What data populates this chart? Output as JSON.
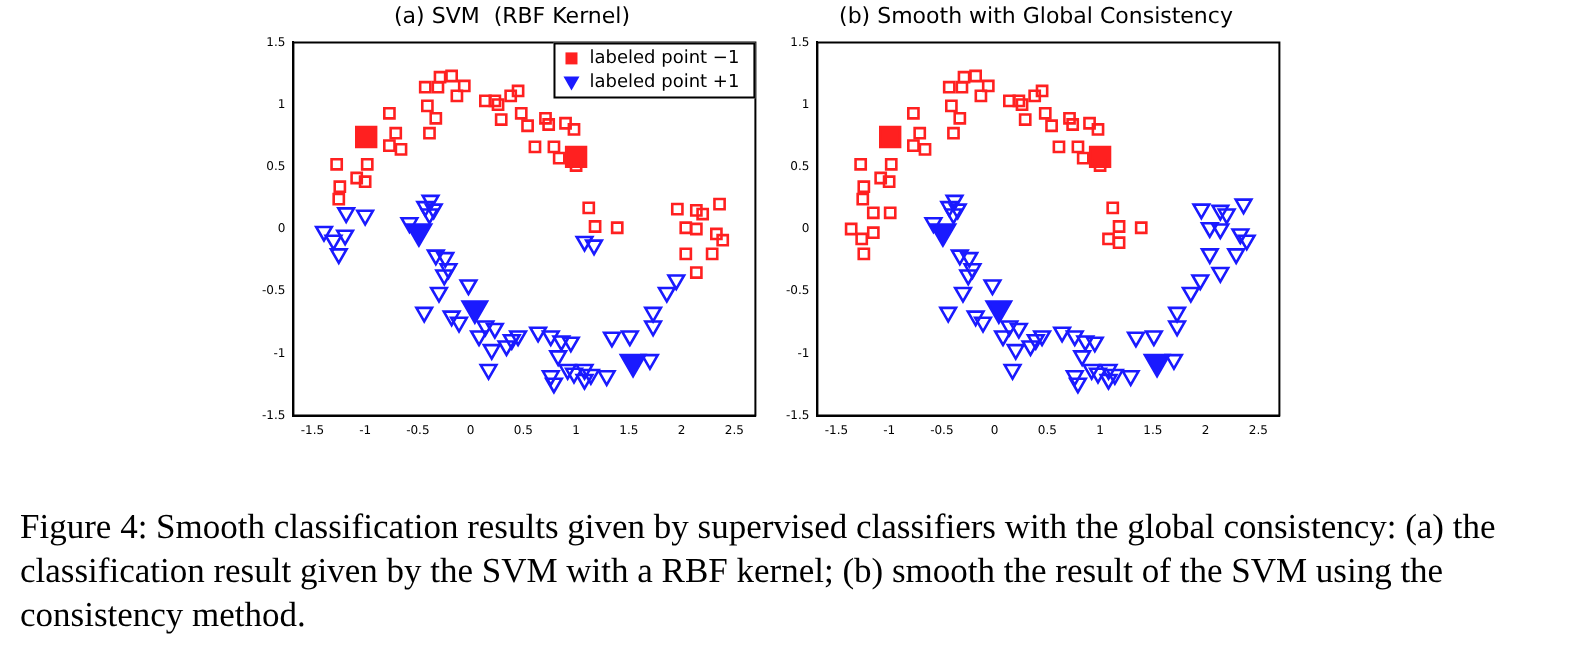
{
  "chart_data": [
    {
      "type": "scatter",
      "title": "(a) SVM  (RBF Kernel)",
      "xlim": [
        -1.68,
        2.7
      ],
      "ylim": [
        -1.5,
        1.5
      ],
      "xticks": [
        -1.5,
        -1,
        -0.5,
        0,
        0.5,
        1,
        1.5,
        2,
        2.5
      ],
      "yticks": [
        -1.5,
        -1,
        -0.5,
        0,
        0.5,
        1,
        1.5
      ],
      "grid": false,
      "legend": "top right",
      "annotations": [
        "Figure 4: Smooth classification results given by supervised classifiers with the global consistency: (a) the classification result given by the SVM with a RBF kernel; (b) smooth the result of the SVM using the consistency method."
      ],
      "series": [
        {
          "color": "#ff2020",
          "marker": "square",
          "x": [
            -1.27,
            -1.24,
            -1.25,
            -1.08,
            -1.0,
            -0.98,
            -0.77,
            -0.71,
            -0.77,
            -0.66,
            -0.43,
            -0.41,
            -0.33,
            -0.29,
            -0.18,
            -0.31,
            -0.13,
            -0.06,
            -0.39,
            0.14,
            0.23,
            0.26,
            0.29,
            0.38,
            0.45,
            0.48,
            0.54,
            0.61,
            0.71,
            0.74,
            0.79,
            0.9,
            0.98,
            0.84,
            1.0,
            1.12,
            1.18,
            1.39,
            1.96,
            2.14,
            2.2,
            2.36,
            2.04,
            2.14,
            2.33,
            2.39,
            2.04,
            2.29,
            2.14
          ],
          "values": [
            0.52,
            0.34,
            0.24,
            0.41,
            0.38,
            0.52,
            0.93,
            0.77,
            0.67,
            0.64,
            1.14,
            0.99,
            0.89,
            1.22,
            1.23,
            1.14,
            1.07,
            1.15,
            0.77,
            1.03,
            1.03,
            1.0,
            0.88,
            1.07,
            1.11,
            0.93,
            0.83,
            0.66,
            0.89,
            0.84,
            0.66,
            0.85,
            0.8,
            0.57,
            0.51,
            0.17,
            0.02,
            0.01,
            0.16,
            0.15,
            0.12,
            0.2,
            0.01,
            0.0,
            -0.04,
            -0.09,
            -0.2,
            -0.2,
            -0.35
          ]
        },
        {
          "color": "#1a1aff",
          "marker": "triangle",
          "x": [
            -1.39,
            -1.25,
            -1.3,
            -1.19,
            -1.18,
            -1.0,
            -0.58,
            -0.38,
            -0.43,
            -0.35,
            -0.39,
            -0.33,
            -0.24,
            -0.21,
            -0.25,
            -0.3,
            -0.44,
            -0.18,
            -0.11,
            -0.02,
            0.14,
            0.23,
            0.08,
            0.2,
            0.17,
            0.34,
            0.39,
            0.45,
            0.64,
            0.76,
            0.86,
            0.95,
            0.83,
            0.92,
            0.98,
            0.79,
            0.76,
            1.08,
            1.08,
            1.14,
            1.29,
            1.34,
            1.51,
            1.7,
            1.73,
            1.73,
            1.86,
            1.95,
            1.08,
            1.17
          ],
          "values": [
            -0.02,
            -0.2,
            -0.09,
            -0.05,
            0.13,
            0.11,
            0.05,
            0.23,
            0.18,
            0.16,
            0.12,
            -0.21,
            -0.23,
            -0.32,
            -0.37,
            -0.51,
            -0.67,
            -0.7,
            -0.75,
            -0.45,
            -0.78,
            -0.8,
            -0.86,
            -0.97,
            -1.13,
            -0.94,
            -0.89,
            -0.86,
            -0.83,
            -0.86,
            -0.9,
            -0.91,
            -1.02,
            -1.13,
            -1.16,
            -1.24,
            -1.18,
            -1.21,
            -1.13,
            -1.17,
            -1.18,
            -0.87,
            -0.86,
            -1.05,
            -0.78,
            -0.67,
            -0.51,
            -0.41,
            -0.1,
            -0.13
          ]
        },
        {
          "name": "labeled point −1",
          "color": "#ff2020",
          "marker": "square",
          "x": [
            -0.99,
            1.0
          ],
          "values": [
            0.74,
            0.58
          ]
        },
        {
          "name": "labeled point +1",
          "color": "#1a1aff",
          "marker": "triangle",
          "x": [
            -0.49,
            0.04,
            1.54
          ],
          "values": [
            -0.02,
            -0.64,
            -1.07
          ]
        }
      ]
    },
    {
      "type": "scatter",
      "title": "(b) Smooth with Global Consistency",
      "xlim": [
        -1.68,
        2.7
      ],
      "ylim": [
        -1.5,
        1.5
      ],
      "xticks": [
        -1.5,
        -1,
        -0.5,
        0,
        0.5,
        1,
        1.5,
        2,
        2.5
      ],
      "yticks": [
        -1.5,
        -1,
        -0.5,
        0,
        0.5,
        1,
        1.5
      ],
      "grid": false,
      "legend": false,
      "series": [
        {
          "color": "#ff2020",
          "marker": "square",
          "x": [
            -1.27,
            -1.24,
            -1.25,
            -1.08,
            -1.0,
            -0.98,
            -0.77,
            -0.71,
            -0.77,
            -0.66,
            -0.43,
            -0.41,
            -0.33,
            -0.29,
            -0.18,
            -0.31,
            -0.13,
            -0.06,
            -0.39,
            0.14,
            0.23,
            0.26,
            0.29,
            0.38,
            0.45,
            0.48,
            0.54,
            0.61,
            0.71,
            0.74,
            0.79,
            0.9,
            0.98,
            0.84,
            1.0,
            1.12,
            1.18,
            1.39,
            -1.36,
            -1.26,
            -1.24,
            -1.15,
            -1.15,
            -0.99,
            1.08,
            1.18
          ],
          "values": [
            0.52,
            0.34,
            0.24,
            0.41,
            0.38,
            0.52,
            0.93,
            0.77,
            0.67,
            0.64,
            1.14,
            0.99,
            0.89,
            1.22,
            1.23,
            1.14,
            1.07,
            1.15,
            0.77,
            1.03,
            1.03,
            1.0,
            0.88,
            1.07,
            1.11,
            0.93,
            0.83,
            0.66,
            0.89,
            0.84,
            0.66,
            0.85,
            0.8,
            0.57,
            0.51,
            0.17,
            0.02,
            0.01,
            0.0,
            -0.08,
            -0.2,
            -0.03,
            0.13,
            0.13,
            -0.08,
            -0.11
          ]
        },
        {
          "color": "#1a1aff",
          "marker": "triangle",
          "x": [
            -0.58,
            -0.38,
            -0.43,
            -0.35,
            -0.39,
            -0.33,
            -0.24,
            -0.21,
            -0.25,
            -0.3,
            -0.44,
            -0.18,
            -0.11,
            -0.02,
            0.14,
            0.23,
            0.08,
            0.2,
            0.17,
            0.34,
            0.39,
            0.45,
            0.64,
            0.76,
            0.86,
            0.95,
            0.83,
            0.92,
            0.98,
            0.79,
            0.76,
            1.08,
            1.08,
            1.14,
            1.29,
            1.34,
            1.51,
            1.7,
            1.73,
            1.73,
            1.86,
            1.95,
            1.96,
            2.14,
            2.2,
            2.36,
            2.04,
            2.14,
            2.33,
            2.39,
            2.04,
            2.29,
            2.14
          ],
          "values": [
            0.05,
            0.23,
            0.18,
            0.16,
            0.12,
            -0.21,
            -0.23,
            -0.32,
            -0.37,
            -0.51,
            -0.67,
            -0.7,
            -0.75,
            -0.45,
            -0.78,
            -0.8,
            -0.86,
            -0.97,
            -1.13,
            -0.94,
            -0.89,
            -0.86,
            -0.83,
            -0.86,
            -0.9,
            -0.91,
            -1.02,
            -1.13,
            -1.16,
            -1.24,
            -1.18,
            -1.21,
            -1.13,
            -1.17,
            -1.18,
            -0.87,
            -0.86,
            -1.05,
            -0.78,
            -0.67,
            -0.51,
            -0.41,
            0.16,
            0.15,
            0.12,
            0.2,
            0.01,
            0.0,
            -0.04,
            -0.09,
            -0.2,
            -0.2,
            -0.35
          ]
        },
        {
          "color": "#ff2020",
          "marker": "square",
          "x": [
            -0.99,
            1.0
          ],
          "values": [
            0.74,
            0.58
          ]
        },
        {
          "color": "#1a1aff",
          "marker": "triangle",
          "x": [
            -0.49,
            0.04,
            1.54
          ],
          "values": [
            -0.02,
            -0.64,
            -1.07
          ]
        }
      ]
    }
  ]
}
